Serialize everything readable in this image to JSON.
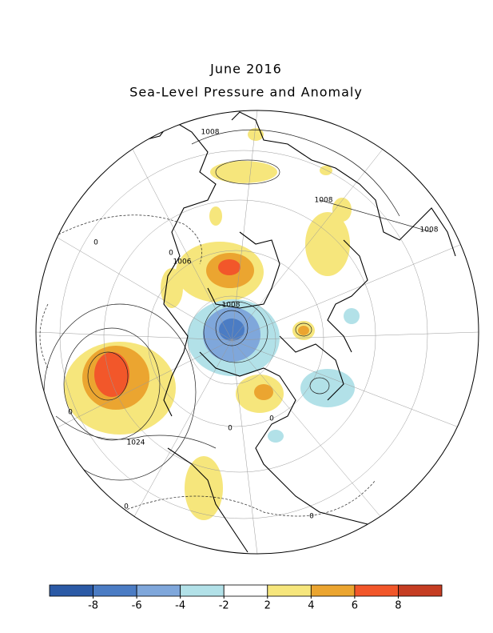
{
  "title": "June 2016",
  "subtitle": "Sea-Level Pressure and Anomaly",
  "contour_labels": [
    "1008",
    "1008",
    "1008",
    "1006",
    "1008",
    "1024",
    "0",
    "0",
    "0",
    "0",
    "0",
    "0",
    "0"
  ],
  "colorbar": {
    "ticks": [
      -8,
      -6,
      -4,
      -2,
      2,
      4,
      6,
      8
    ],
    "colors": [
      "#2b5aa6",
      "#4b7cc4",
      "#7fa7db",
      "#b2e1e8",
      "#ffffff",
      "#f6e67c",
      "#eba530",
      "#f2572a",
      "#c53d22"
    ]
  }
}
